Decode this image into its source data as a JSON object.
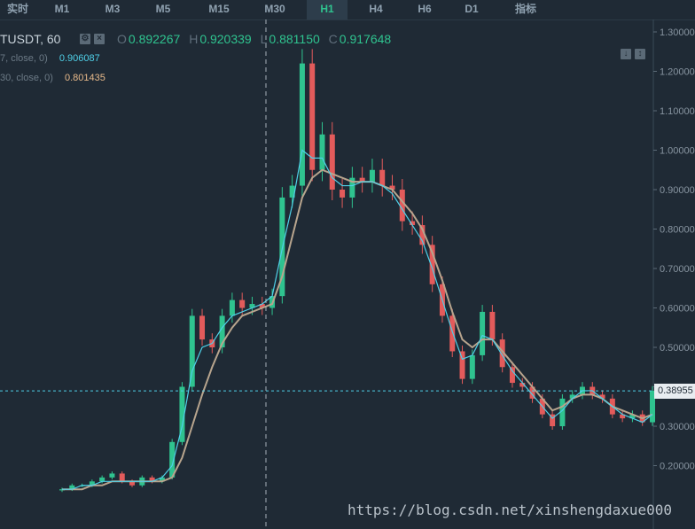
{
  "tabs": [
    {
      "label": "实时",
      "active": false
    },
    {
      "label": "M1",
      "active": false
    },
    {
      "label": "M3",
      "active": false
    },
    {
      "label": "M5",
      "active": false
    },
    {
      "label": "M15",
      "active": false
    },
    {
      "label": "M30",
      "active": false
    },
    {
      "label": "H1",
      "active": true
    },
    {
      "label": "H4",
      "active": false
    },
    {
      "label": "H6",
      "active": false
    },
    {
      "label": "D1",
      "active": false
    },
    {
      "label": "指标",
      "active": false
    }
  ],
  "symbol": "TUSDT, 60",
  "ohlc": {
    "o_label": "O",
    "o": "0.892267",
    "h_label": "H",
    "h": "0.920339",
    "l_label": "L",
    "l": "0.881150",
    "c_label": "C",
    "c": "0.917648"
  },
  "ma_fast": {
    "name": "7, close, 0)",
    "value": "0.906087"
  },
  "ma_slow": {
    "name": "30, close, 0)",
    "value": "0.801435"
  },
  "watermark": "https://blog.csdn.net/xinshengdaxue000",
  "colors": {
    "up": "#2fc38f",
    "down": "#e35b5b",
    "ma_fast": "#4fd0e8",
    "ma_slow": "#b8a58e",
    "background": "#1f2a35"
  },
  "chart_data": {
    "type": "candlestick",
    "timeframe": "H1",
    "ylim": [
      0.1,
      1.3
    ],
    "yticks": [
      "1.30000",
      "1.20000",
      "1.10000",
      "1.00000",
      "0.90000",
      "0.80000",
      "0.70000",
      "0.60000",
      "0.50000",
      "0.40000",
      "0.30000",
      "0.20000"
    ],
    "last_price": "0.38955",
    "closes": [
      0.14,
      0.15,
      0.15,
      0.16,
      0.17,
      0.18,
      0.16,
      0.15,
      0.17,
      0.16,
      0.17,
      0.26,
      0.4,
      0.58,
      0.52,
      0.5,
      0.58,
      0.62,
      0.6,
      0.61,
      0.6,
      0.63,
      0.88,
      0.91,
      1.22,
      0.95,
      1.04,
      0.9,
      0.88,
      0.93,
      0.92,
      0.95,
      0.91,
      0.9,
      0.82,
      0.81,
      0.76,
      0.66,
      0.58,
      0.49,
      0.42,
      0.48,
      0.59,
      0.52,
      0.45,
      0.41,
      0.4,
      0.37,
      0.33,
      0.3,
      0.37,
      0.38,
      0.4,
      0.38,
      0.37,
      0.33,
      0.32,
      0.33,
      0.31,
      0.39
    ],
    "ma_fast": [
      0.14,
      0.14,
      0.15,
      0.15,
      0.16,
      0.16,
      0.16,
      0.16,
      0.16,
      0.16,
      0.17,
      0.2,
      0.3,
      0.44,
      0.5,
      0.51,
      0.55,
      0.58,
      0.59,
      0.6,
      0.61,
      0.63,
      0.75,
      0.86,
      1.0,
      0.98,
      0.98,
      0.93,
      0.91,
      0.91,
      0.92,
      0.92,
      0.91,
      0.89,
      0.85,
      0.81,
      0.77,
      0.7,
      0.62,
      0.54,
      0.47,
      0.48,
      0.53,
      0.52,
      0.48,
      0.44,
      0.41,
      0.38,
      0.35,
      0.32,
      0.34,
      0.37,
      0.39,
      0.39,
      0.37,
      0.35,
      0.33,
      0.32,
      0.31,
      0.33
    ],
    "ma_slow": [
      0.14,
      0.14,
      0.14,
      0.15,
      0.15,
      0.16,
      0.16,
      0.16,
      0.16,
      0.16,
      0.16,
      0.17,
      0.22,
      0.3,
      0.38,
      0.45,
      0.51,
      0.55,
      0.58,
      0.59,
      0.6,
      0.61,
      0.68,
      0.78,
      0.88,
      0.93,
      0.95,
      0.94,
      0.93,
      0.92,
      0.92,
      0.92,
      0.91,
      0.9,
      0.87,
      0.84,
      0.8,
      0.74,
      0.67,
      0.59,
      0.52,
      0.5,
      0.52,
      0.52,
      0.49,
      0.46,
      0.43,
      0.4,
      0.37,
      0.34,
      0.35,
      0.37,
      0.38,
      0.38,
      0.37,
      0.35,
      0.34,
      0.33,
      0.32,
      0.33
    ],
    "grid": false
  }
}
